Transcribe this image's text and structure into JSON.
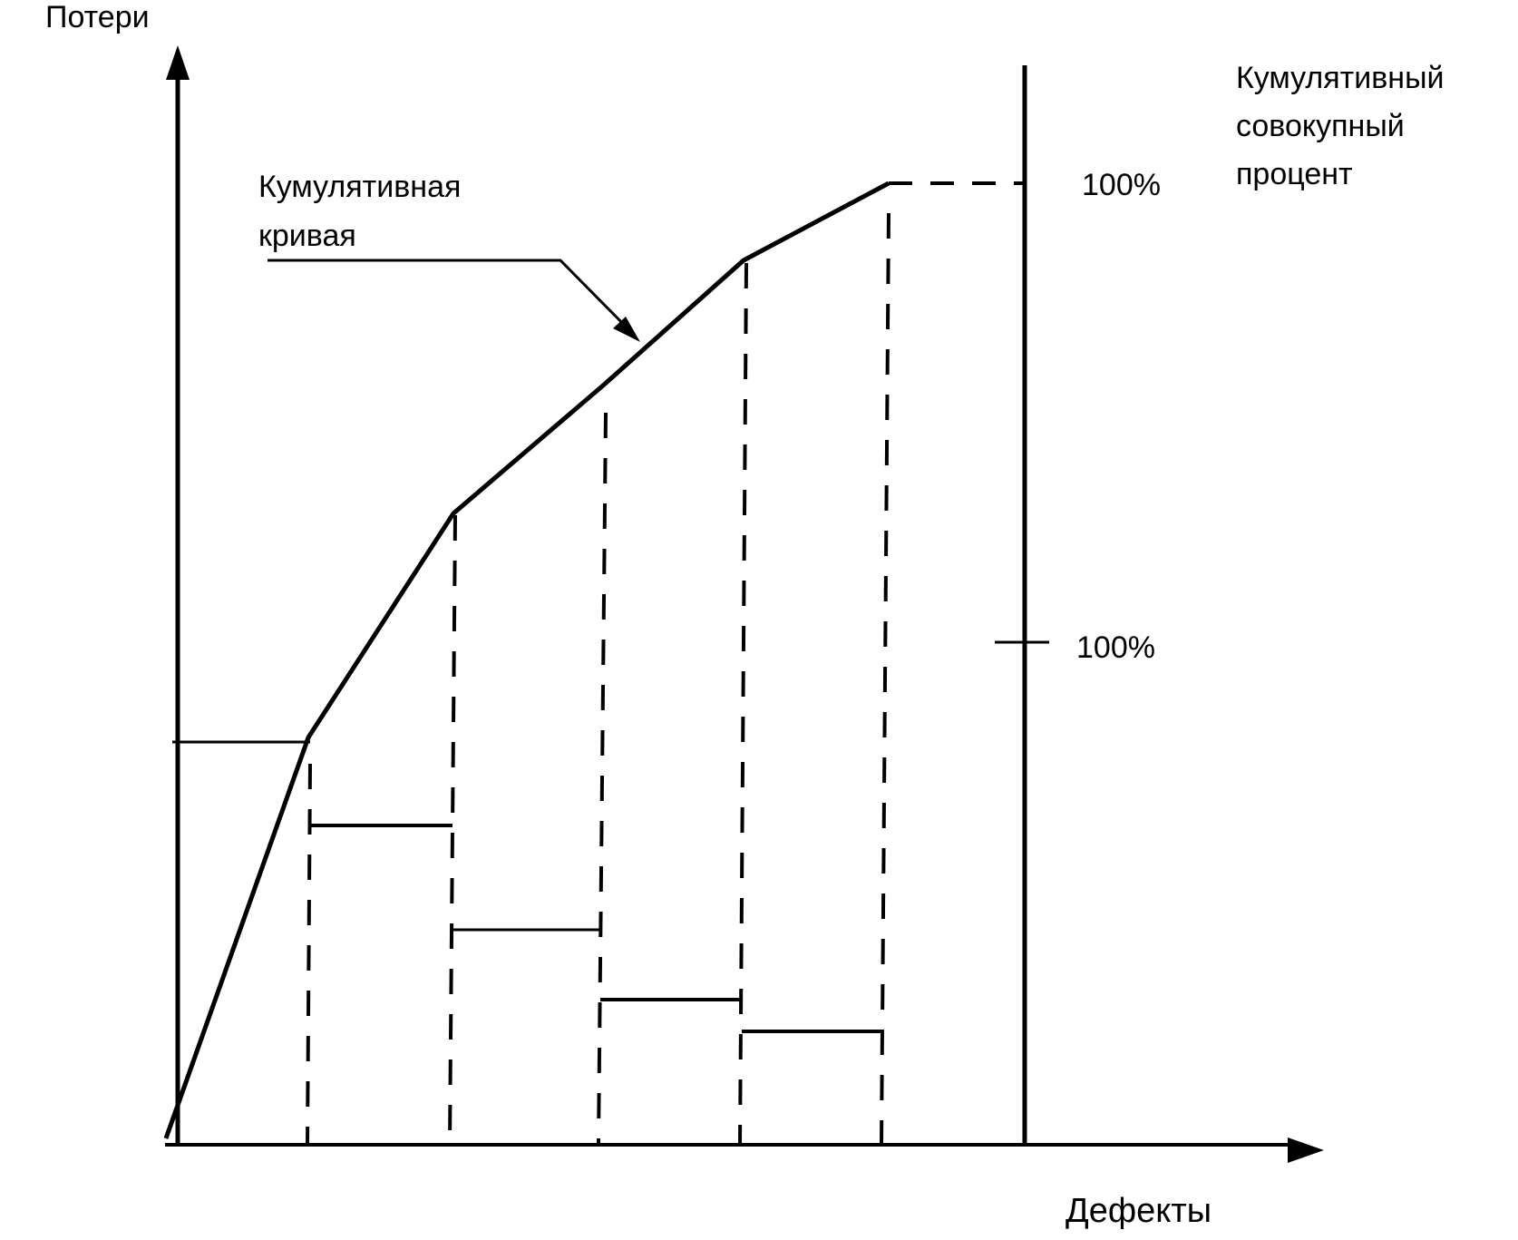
{
  "labels": {
    "y_axis": "Потери",
    "x_axis": "Дефекты",
    "curve_line1": "Кумулятивная",
    "curve_line2": "кривая",
    "right_line1": "Кумулятивный",
    "right_line2": "совокупный",
    "right_line3": "процент",
    "percent_top": "100%",
    "percent_mid": "100%"
  },
  "colors": {
    "ink": "#000000",
    "background": "#ffffff"
  }
}
